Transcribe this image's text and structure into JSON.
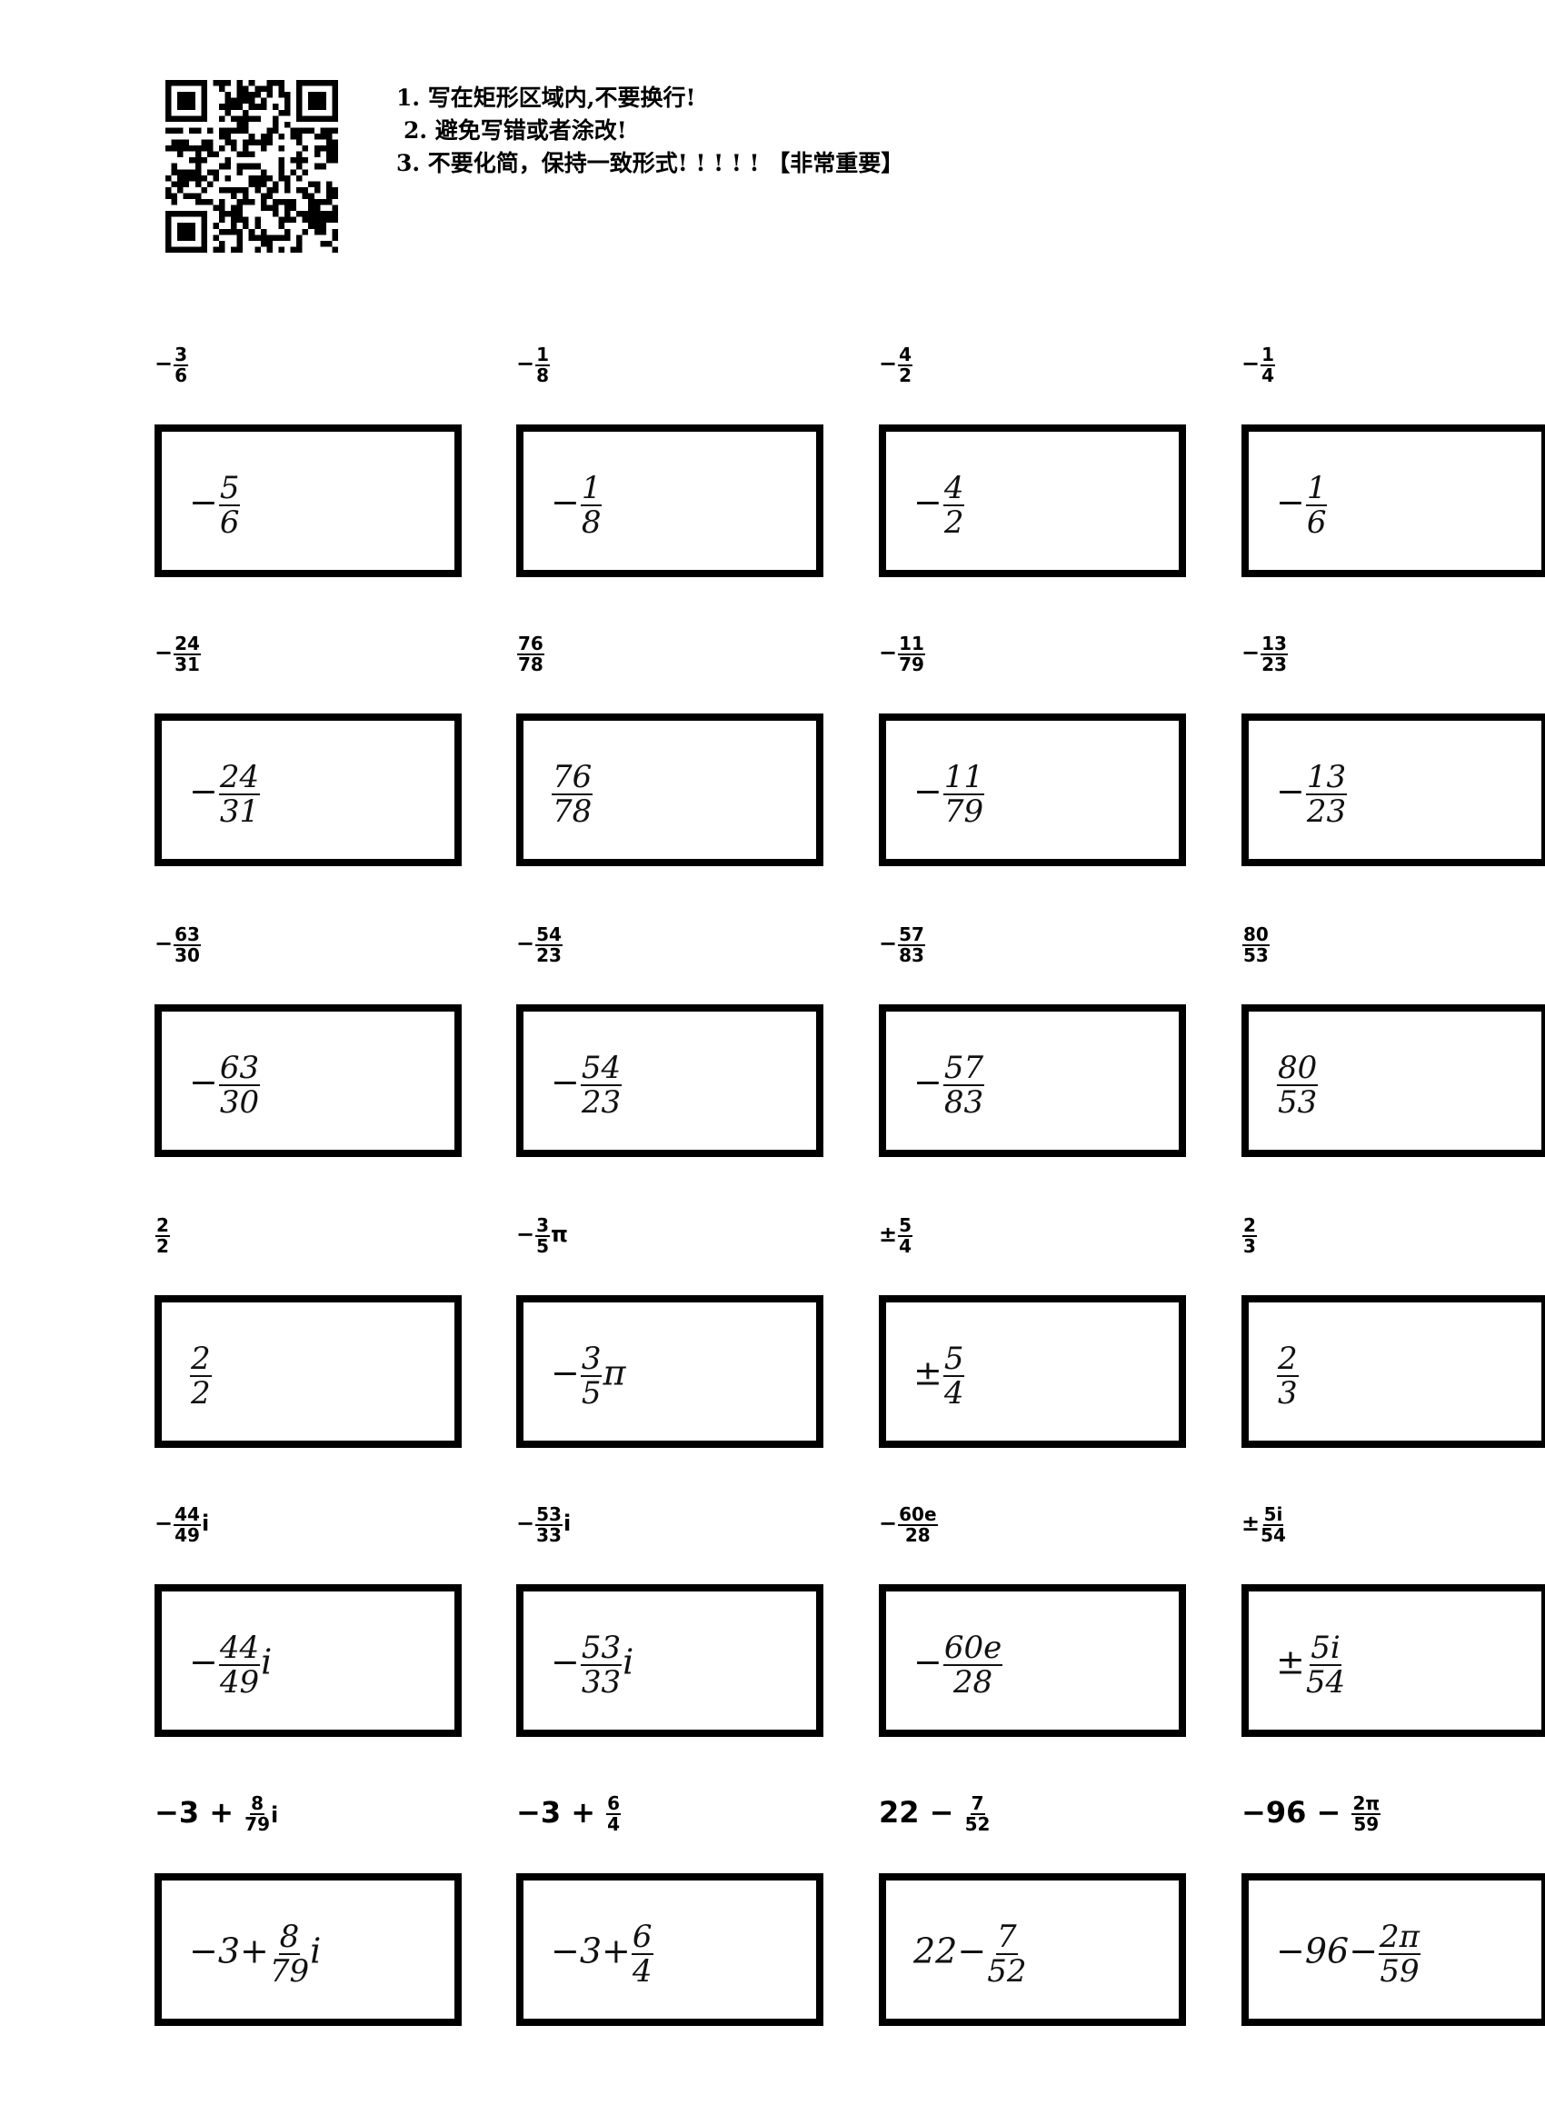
{
  "instructions": [
    "1. 写在矩形区域内,不要换行!",
    "2. 避免写错或者涂改!",
    "3. 不要化简，保持一致形式! ! ! ! ! 【非常重要】"
  ],
  "problems": [
    {
      "printed": {
        "pre": "−",
        "num": "3",
        "den": "6",
        "suf": ""
      },
      "answer": {
        "pre": "−",
        "num": "5",
        "den": "6",
        "suf": ""
      }
    },
    {
      "printed": {
        "pre": "−",
        "num": "1",
        "den": "8",
        "suf": ""
      },
      "answer": {
        "pre": "−",
        "num": "1",
        "den": "8",
        "suf": ""
      }
    },
    {
      "printed": {
        "pre": "−",
        "num": "4",
        "den": "2",
        "suf": ""
      },
      "answer": {
        "pre": "−",
        "num": "4",
        "den": "2",
        "suf": ""
      }
    },
    {
      "printed": {
        "pre": "−",
        "num": "1",
        "den": "4",
        "suf": ""
      },
      "answer": {
        "pre": "−",
        "num": "1",
        "den": "6",
        "suf": ""
      }
    },
    {
      "printed": {
        "pre": "−",
        "num": "24",
        "den": "31",
        "suf": ""
      },
      "answer": {
        "pre": "−",
        "num": "24",
        "den": "31",
        "suf": ""
      }
    },
    {
      "printed": {
        "pre": "",
        "num": "76",
        "den": "78",
        "suf": ""
      },
      "answer": {
        "pre": "",
        "num": "76",
        "den": "78",
        "suf": ""
      }
    },
    {
      "printed": {
        "pre": "−",
        "num": "11",
        "den": "79",
        "suf": ""
      },
      "answer": {
        "pre": "−",
        "num": "11",
        "den": "79",
        "suf": ""
      }
    },
    {
      "printed": {
        "pre": "−",
        "num": "13",
        "den": "23",
        "suf": ""
      },
      "answer": {
        "pre": "−",
        "num": "13",
        "den": "23",
        "suf": ""
      }
    },
    {
      "printed": {
        "pre": "−",
        "num": "63",
        "den": "30",
        "suf": ""
      },
      "answer": {
        "pre": "−",
        "num": "63",
        "den": "30",
        "suf": ""
      }
    },
    {
      "printed": {
        "pre": "−",
        "num": "54",
        "den": "23",
        "suf": ""
      },
      "answer": {
        "pre": "−",
        "num": "54",
        "den": "23",
        "suf": ""
      }
    },
    {
      "printed": {
        "pre": "−",
        "num": "57",
        "den": "83",
        "suf": ""
      },
      "answer": {
        "pre": "−",
        "num": "57",
        "den": "83",
        "suf": ""
      }
    },
    {
      "printed": {
        "pre": "",
        "num": "80",
        "den": "53",
        "suf": ""
      },
      "answer": {
        "pre": "",
        "num": "80",
        "den": "53",
        "suf": ""
      }
    },
    {
      "printed": {
        "pre": "",
        "num": "2",
        "den": "2",
        "suf": ""
      },
      "answer": {
        "pre": "",
        "num": "2",
        "den": "2",
        "suf": ""
      }
    },
    {
      "printed": {
        "pre": "−",
        "num": "3",
        "den": "5",
        "suf": "π"
      },
      "answer": {
        "pre": "−",
        "num": "3",
        "den": "5",
        "suf": "π"
      }
    },
    {
      "printed": {
        "pre": "±",
        "num": "5",
        "den": "4",
        "suf": ""
      },
      "answer": {
        "pre": "±",
        "num": "5",
        "den": "4",
        "suf": ""
      }
    },
    {
      "printed": {
        "pre": "",
        "num": "2",
        "den": "3",
        "suf": ""
      },
      "answer": {
        "pre": "",
        "num": "2",
        "den": "3",
        "suf": ""
      }
    },
    {
      "printed": {
        "pre": "−",
        "num": "44",
        "den": "49",
        "suf": "i"
      },
      "answer": {
        "pre": "−",
        "num": "44",
        "den": "49",
        "suf": "i"
      }
    },
    {
      "printed": {
        "pre": "−",
        "num": "53",
        "den": "33",
        "suf": "i"
      },
      "answer": {
        "pre": "−",
        "num": "53",
        "den": "33",
        "suf": "i"
      }
    },
    {
      "printed": {
        "pre": "−",
        "num": "60e",
        "den": "28",
        "suf": ""
      },
      "answer": {
        "pre": "−",
        "num": "60e",
        "den": "28",
        "suf": ""
      }
    },
    {
      "printed": {
        "pre": "±",
        "num": "5i",
        "den": "54",
        "suf": ""
      },
      "answer": {
        "pre": "±",
        "num": "5i",
        "den": "54",
        "suf": ""
      }
    },
    {
      "printed": {
        "pre": "−3 + ",
        "num": "8",
        "den": "79",
        "suf": "i"
      },
      "answer": {
        "pre": "−3+",
        "num": "8",
        "den": "79",
        "suf": "i"
      }
    },
    {
      "printed": {
        "pre": "−3 + ",
        "num": "6",
        "den": "4",
        "suf": ""
      },
      "answer": {
        "pre": "−3+",
        "num": "6",
        "den": "4",
        "suf": ""
      }
    },
    {
      "printed": {
        "pre": "22 − ",
        "num": "7",
        "den": "52",
        "suf": ""
      },
      "answer": {
        "pre": "22−",
        "num": "7",
        "den": "52",
        "suf": ""
      }
    },
    {
      "printed": {
        "pre": "−96 − ",
        "num": "2π",
        "den": "59",
        "suf": ""
      },
      "answer": {
        "pre": "−96−",
        "num": "2π",
        "den": "59",
        "suf": ""
      }
    }
  ]
}
